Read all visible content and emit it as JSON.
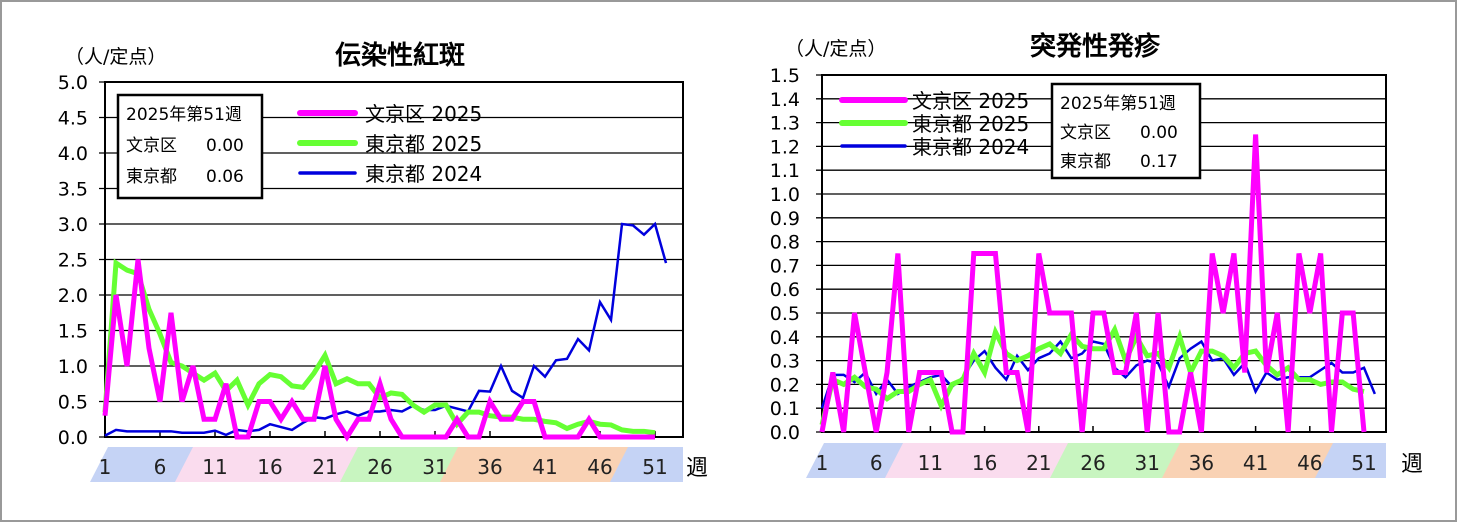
{
  "colors": {
    "bunkyo2025": "#ff00ff",
    "tokyo2025": "#66ff33",
    "tokyo2024": "#0000dd",
    "band_blue": "#c5d3f5",
    "band_pink": "#fadcee",
    "band_green": "#c8f5c0",
    "band_orange": "#f9d2b4"
  },
  "chart_data": [
    {
      "type": "line",
      "title": "伝染性紅斑",
      "ylabel": "（人/定点）",
      "xlabel": "週",
      "ylim": [
        0,
        5.0
      ],
      "yticks": [
        "0.0",
        "0.5",
        "1.0",
        "1.5",
        "2.0",
        "2.5",
        "3.0",
        "3.5",
        "4.0",
        "4.5",
        "5.0"
      ],
      "xticks": [
        "1",
        "6",
        "11",
        "16",
        "21",
        "26",
        "31",
        "36",
        "41",
        "46",
        "51"
      ],
      "grid": true,
      "legend": "top",
      "info": {
        "title": "2025年第51週",
        "rows": [
          {
            "label": "文京区",
            "value": "0.00"
          },
          {
            "label": "東京都",
            "value": "0.06"
          }
        ]
      },
      "series": [
        {
          "name": "文京区 2025",
          "values": [
            0.3,
            2.0,
            1.0,
            2.5,
            1.25,
            0.5,
            1.75,
            0.5,
            1.0,
            0.25,
            0.25,
            0.75,
            0,
            0,
            0.5,
            0.5,
            0.25,
            0.5,
            0.25,
            0.25,
            1.0,
            0.25,
            0,
            0.25,
            0.25,
            0.75,
            0.25,
            0,
            0,
            0,
            0,
            0,
            0.25,
            0,
            0,
            0.5,
            0.25,
            0.25,
            0.5,
            0.5,
            0,
            0,
            0,
            0,
            0.25,
            0,
            0,
            0,
            0,
            0,
            0
          ]
        },
        {
          "name": "東京都 2025",
          "values": [
            0.35,
            2.45,
            2.35,
            2.3,
            1.8,
            1.45,
            1.05,
            1.0,
            0.9,
            0.8,
            0.9,
            0.65,
            0.8,
            0.45,
            0.75,
            0.88,
            0.85,
            0.72,
            0.7,
            0.9,
            1.15,
            0.75,
            0.82,
            0.75,
            0.75,
            0.55,
            0.62,
            0.6,
            0.45,
            0.35,
            0.45,
            0.45,
            0.18,
            0.35,
            0.35,
            0.3,
            0.28,
            0.28,
            0.25,
            0.25,
            0.22,
            0.2,
            0.12,
            0.18,
            0.22,
            0.18,
            0.17,
            0.1,
            0.08,
            0.08,
            0.06
          ]
        },
        {
          "name": "東京都 2024",
          "values": [
            0.02,
            0.1,
            0.08,
            0.08,
            0.08,
            0.08,
            0.08,
            0.06,
            0.06,
            0.06,
            0.09,
            0.03,
            0.1,
            0.08,
            0.1,
            0.18,
            0.14,
            0.1,
            0.2,
            0.28,
            0.26,
            0.32,
            0.36,
            0.3,
            0.36,
            0.36,
            0.38,
            0.36,
            0.44,
            0.38,
            0.38,
            0.44,
            0.4,
            0.36,
            0.65,
            0.64,
            1.0,
            0.65,
            0.55,
            1.0,
            0.85,
            1.08,
            1.1,
            1.38,
            1.22,
            1.9,
            1.65,
            3.0,
            2.98,
            2.85,
            3.0,
            2.45
          ]
        }
      ]
    },
    {
      "type": "line",
      "title": "突発性発疹",
      "ylabel": "（人/定点）",
      "xlabel": "週",
      "ylim": [
        0,
        1.5
      ],
      "yticks": [
        "0.0",
        "0.1",
        "0.2",
        "0.3",
        "0.4",
        "0.5",
        "0.6",
        "0.7",
        "0.8",
        "0.9",
        "1.0",
        "1.1",
        "1.2",
        "1.3",
        "1.4",
        "1.5"
      ],
      "xticks": [
        "1",
        "6",
        "11",
        "16",
        "21",
        "26",
        "31",
        "36",
        "41",
        "46",
        "51"
      ],
      "grid": true,
      "legend": "top-left",
      "info": {
        "title": "2025年第51週",
        "rows": [
          {
            "label": "文京区",
            "value": "0.00"
          },
          {
            "label": "東京都",
            "value": "0.17"
          }
        ]
      },
      "series": [
        {
          "name": "文京区 2025",
          "values": [
            0,
            0.25,
            0,
            0.5,
            0.25,
            0,
            0.25,
            0.75,
            0,
            0.25,
            0.25,
            0.25,
            0,
            0,
            0.75,
            0.75,
            0.75,
            0.25,
            0.25,
            0,
            0.75,
            0.5,
            0.5,
            0.5,
            0,
            0.5,
            0.5,
            0.25,
            0.25,
            0.5,
            0,
            0.5,
            0,
            0,
            0.25,
            0,
            0.75,
            0.5,
            0.75,
            0.25,
            1.25,
            0.25,
            0.5,
            0,
            0.75,
            0.5,
            0.75,
            0,
            0.5,
            0.5,
            0
          ]
        },
        {
          "name": "東京都 2025",
          "values": [
            0.03,
            0.22,
            0.2,
            0.23,
            0.19,
            0.18,
            0.14,
            0.17,
            0.17,
            0.2,
            0.22,
            0.11,
            0.2,
            0.22,
            0.33,
            0.25,
            0.42,
            0.33,
            0.3,
            0.32,
            0.35,
            0.37,
            0.33,
            0.41,
            0.36,
            0.35,
            0.35,
            0.43,
            0.3,
            0.4,
            0.32,
            0.33,
            0.27,
            0.4,
            0.25,
            0.34,
            0.34,
            0.32,
            0.27,
            0.33,
            0.34,
            0.28,
            0.24,
            0.27,
            0.22,
            0.22,
            0.2,
            0.21,
            0.21,
            0.18,
            0.17
          ]
        },
        {
          "name": "東京都 2024",
          "values": [
            0.1,
            0.24,
            0.24,
            0.21,
            0.25,
            0.16,
            0.22,
            0.16,
            0.19,
            0.21,
            0.23,
            0.24,
            0.19,
            0.23,
            0.3,
            0.34,
            0.27,
            0.22,
            0.32,
            0.26,
            0.31,
            0.33,
            0.38,
            0.31,
            0.33,
            0.38,
            0.37,
            0.27,
            0.23,
            0.28,
            0.3,
            0.29,
            0.19,
            0.31,
            0.35,
            0.38,
            0.3,
            0.31,
            0.24,
            0.29,
            0.17,
            0.25,
            0.22,
            0.23,
            0.23,
            0.23,
            0.26,
            0.29,
            0.25,
            0.25,
            0.27,
            0.16
          ]
        }
      ]
    }
  ]
}
